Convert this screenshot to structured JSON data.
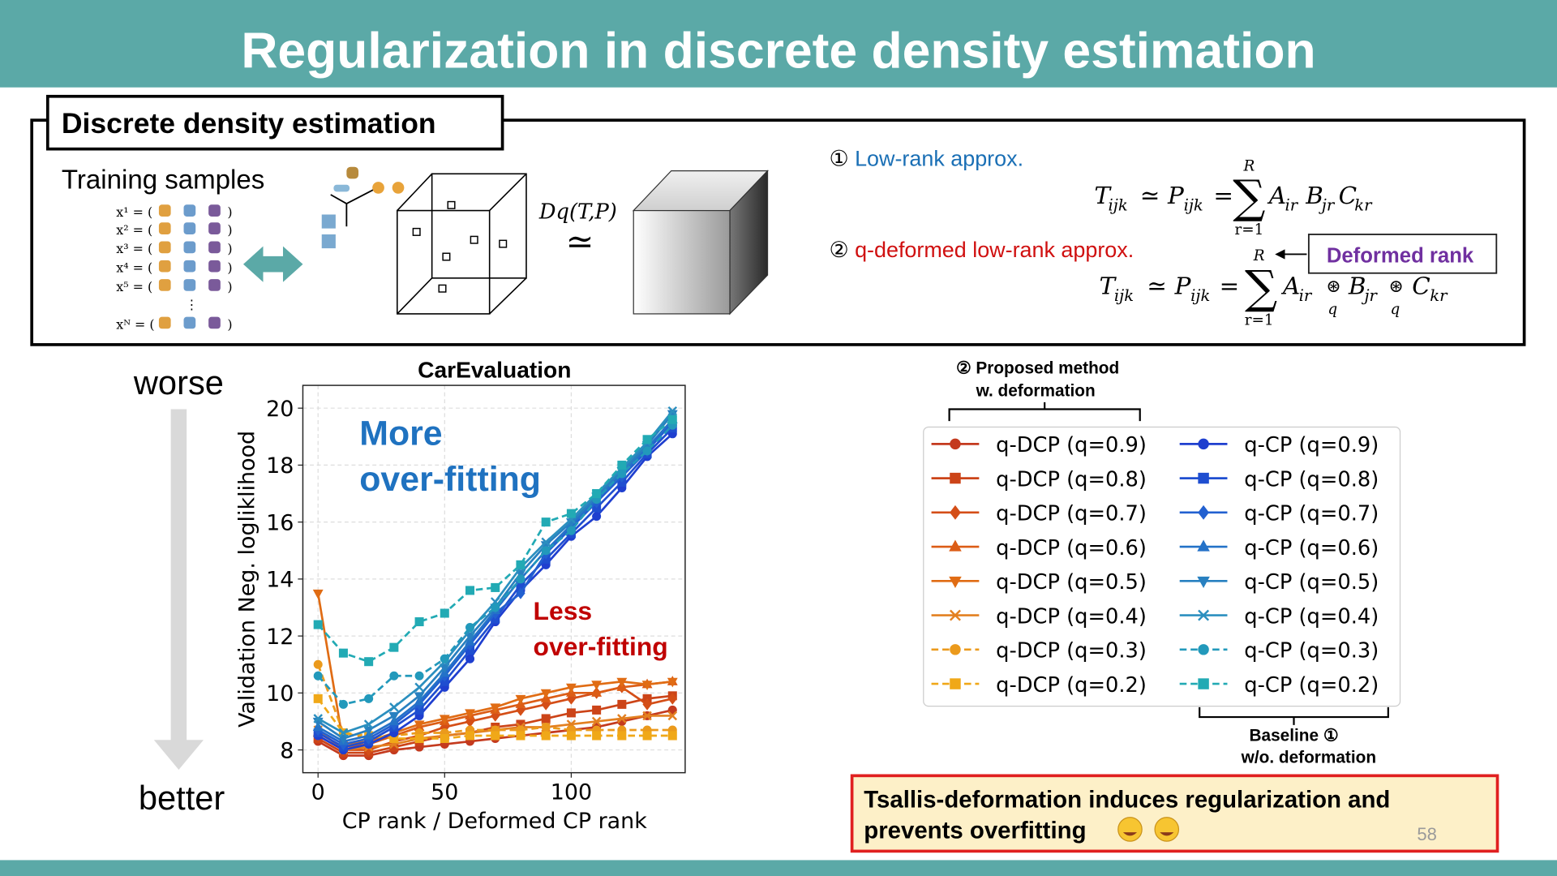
{
  "header": {
    "title": "Regularization in discrete density estimation"
  },
  "box": {
    "label": "Discrete density estimation",
    "training": "Training samples",
    "samples": [
      "x¹ = (",
      "x² = (",
      "x³ = (",
      "x⁴ = (",
      "x⁵ = ("
    ],
    "sample_close": ")",
    "vdots": "⋮",
    "sample_last": "xᴺ = (",
    "divergence": "Dq(T,P)",
    "approx_sign": "≃",
    "item1": {
      "num": "①",
      "text": "Low-rank approx."
    },
    "formula1": [
      "T",
      "ijk",
      "≃",
      "P",
      "ijk",
      "=",
      "∑",
      "R",
      "r=1",
      "A",
      "ir",
      "B",
      "jr",
      "C",
      "kr"
    ],
    "item2": {
      "num": "②",
      "text": "q-deformed low-rank approx."
    },
    "deformed_rank": "Deformed rank",
    "formula2": [
      "T",
      "ijk",
      "≃",
      "P",
      "ijk",
      "=",
      "∑",
      "R",
      "r=1",
      "A",
      "ir",
      "⊛",
      "q",
      "B",
      "jr",
      "⊛",
      "q",
      "C",
      "kr"
    ]
  },
  "side": {
    "worse": "worse",
    "better": "better"
  },
  "chart_data": {
    "type": "line",
    "title": "CarEvaluation",
    "x_label": "CP rank / Deformed CP rank",
    "y_label": "Validation Neg. logliklihood",
    "x": [
      0,
      10,
      20,
      30,
      40,
      50,
      60,
      70,
      80,
      90,
      100,
      110,
      120,
      130,
      140
    ],
    "xlim": [
      -6,
      145
    ],
    "ylim": [
      7.2,
      20.8
    ],
    "xticks": [
      0,
      50,
      100
    ],
    "yticks": [
      8,
      10,
      12,
      14,
      16,
      18,
      20
    ],
    "grid": true,
    "series": [
      {
        "name": "q-DCP (q=0.9)",
        "color": "#c43a1e",
        "marker": "circle",
        "dashed": false,
        "values": [
          8.3,
          7.8,
          7.8,
          8.0,
          8.1,
          8.2,
          8.3,
          8.4,
          8.5,
          8.6,
          8.7,
          8.8,
          9.0,
          9.2,
          9.4
        ]
      },
      {
        "name": "q-DCP (q=0.8)",
        "color": "#cc4418",
        "marker": "square",
        "dashed": false,
        "values": [
          8.4,
          7.9,
          7.9,
          8.1,
          8.3,
          8.5,
          8.6,
          8.8,
          8.9,
          9.1,
          9.3,
          9.4,
          9.6,
          9.8,
          9.9
        ]
      },
      {
        "name": "q-DCP (q=0.7)",
        "color": "#d44e17",
        "marker": "diamond",
        "dashed": false,
        "values": [
          8.5,
          8.0,
          8.0,
          8.3,
          8.5,
          8.8,
          9.0,
          9.2,
          9.4,
          9.6,
          9.8,
          10.0,
          10.2,
          9.6,
          9.8
        ]
      },
      {
        "name": "q-DCP (q=0.6)",
        "color": "#dc5d16",
        "marker": "triangle-up",
        "dashed": false,
        "values": [
          8.6,
          8.1,
          8.2,
          8.5,
          8.8,
          9.0,
          9.2,
          9.4,
          9.6,
          9.8,
          10.0,
          10.0,
          10.2,
          10.3,
          10.4
        ]
      },
      {
        "name": "q-DCP (q=0.5)",
        "color": "#e06c14",
        "marker": "triangle-down",
        "dashed": false,
        "values": [
          13.5,
          8.2,
          8.3,
          8.6,
          8.9,
          9.1,
          9.3,
          9.5,
          9.8,
          10.0,
          10.2,
          10.3,
          10.4,
          10.3,
          10.4
        ]
      },
      {
        "name": "q-DCP (q=0.4)",
        "color": "#e38020",
        "marker": "x",
        "dashed": false,
        "values": [
          8.7,
          8.0,
          8.1,
          8.2,
          8.4,
          8.5,
          8.6,
          8.7,
          8.8,
          8.8,
          8.9,
          9.0,
          9.1,
          9.2,
          9.2
        ]
      },
      {
        "name": "q-DCP (q=0.3)",
        "color": "#eb9a1c",
        "marker": "circle",
        "dashed": true,
        "values": [
          11.0,
          8.6,
          8.4,
          8.5,
          8.6,
          8.6,
          8.7,
          8.7,
          8.7,
          8.8,
          8.7,
          8.7,
          8.7,
          8.7,
          8.7
        ]
      },
      {
        "name": "q-DCP (q=0.2)",
        "color": "#f0a818",
        "marker": "square",
        "dashed": true,
        "values": [
          9.8,
          8.6,
          8.5,
          8.4,
          8.4,
          8.4,
          8.5,
          8.5,
          8.5,
          8.5,
          8.5,
          8.5,
          8.5,
          8.5,
          8.5
        ]
      },
      {
        "name": "q-CP (q=0.9)",
        "color": "#1f3fcf",
        "marker": "circle",
        "dashed": false,
        "values": [
          8.5,
          8.0,
          8.2,
          8.6,
          9.2,
          10.2,
          11.2,
          12.5,
          13.6,
          14.5,
          15.5,
          16.2,
          17.2,
          18.3,
          19.1
        ]
      },
      {
        "name": "q-CP (q=0.8)",
        "color": "#1f4ed0",
        "marker": "square",
        "dashed": false,
        "values": [
          8.6,
          8.1,
          8.3,
          8.8,
          9.4,
          10.4,
          11.5,
          12.6,
          13.8,
          14.7,
          15.6,
          16.5,
          17.4,
          18.4,
          19.3
        ]
      },
      {
        "name": "q-CP (q=0.7)",
        "color": "#2260d0",
        "marker": "diamond",
        "dashed": false,
        "values": [
          8.7,
          8.2,
          8.4,
          8.9,
          9.6,
          10.6,
          11.7,
          12.8,
          13.5,
          14.9,
          15.8,
          16.7,
          17.6,
          18.5,
          19.5
        ]
      },
      {
        "name": "q-CP (q=0.6)",
        "color": "#2472c8",
        "marker": "triangle-up",
        "dashed": false,
        "values": [
          8.8,
          8.3,
          8.5,
          9.0,
          9.7,
          10.7,
          11.8,
          12.9,
          14.0,
          15.0,
          15.9,
          16.8,
          17.7,
          18.6,
          19.6
        ]
      },
      {
        "name": "q-CP (q=0.5)",
        "color": "#2880c0",
        "marker": "triangle-down",
        "dashed": false,
        "values": [
          9.0,
          8.4,
          8.7,
          9.2,
          9.9,
          10.9,
          12.0,
          13.0,
          14.2,
          15.2,
          16.0,
          16.9,
          17.8,
          18.7,
          19.8
        ]
      },
      {
        "name": "q-CP (q=0.4)",
        "color": "#2b8fbf",
        "marker": "x",
        "dashed": false,
        "values": [
          9.1,
          8.6,
          8.9,
          9.5,
          10.2,
          11.1,
          12.2,
          13.2,
          14.4,
          15.3,
          16.1,
          17.0,
          17.9,
          18.8,
          19.9
        ]
      },
      {
        "name": "q-CP (q=0.3)",
        "color": "#2299bb",
        "marker": "circle",
        "dashed": true,
        "values": [
          10.6,
          9.6,
          9.8,
          10.6,
          10.6,
          11.2,
          12.3,
          13.0,
          14.0,
          15.0,
          15.7,
          16.8,
          17.7,
          18.5,
          19.4
        ]
      },
      {
        "name": "q-CP (q=0.2)",
        "color": "#22aab4",
        "marker": "square",
        "dashed": true,
        "values": [
          12.4,
          11.4,
          11.1,
          11.6,
          12.5,
          12.8,
          13.6,
          13.7,
          14.5,
          16.0,
          16.3,
          17.0,
          18.0,
          18.9,
          19.6
        ]
      }
    ],
    "annotations": [
      {
        "lines": [
          "More",
          "over-fitting"
        ],
        "color": "#1f72c0"
      },
      {
        "lines": [
          "Less",
          "over-fitting"
        ],
        "color": "#c00000"
      }
    ]
  },
  "legend_notes": {
    "proposed": [
      "② Proposed method",
      "w. deformation"
    ],
    "baseline": [
      "Baseline ①",
      "w/o. deformation"
    ]
  },
  "conclusion": [
    "Tsallis-deformation induces regularization and",
    "prevents overfitting"
  ],
  "page_number": "58"
}
